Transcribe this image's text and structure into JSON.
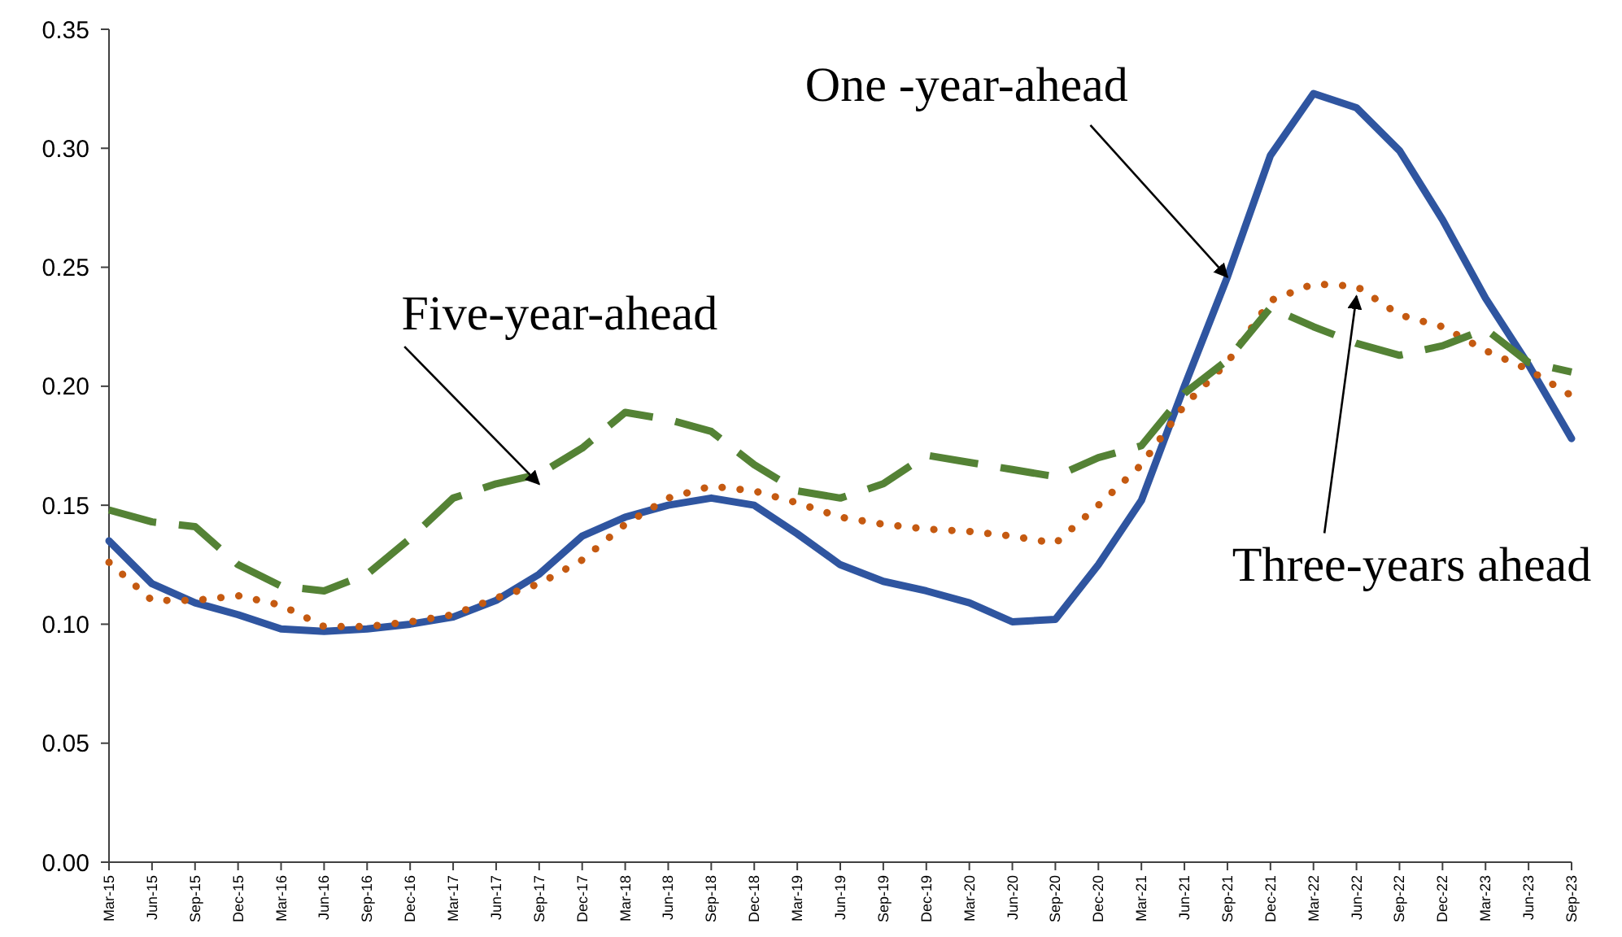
{
  "chart_data": {
    "type": "line",
    "categories": [
      "Mar-15",
      "Jun-15",
      "Sep-15",
      "Dec-15",
      "Mar-16",
      "Jun-16",
      "Sep-16",
      "Dec-16",
      "Mar-17",
      "Jun-17",
      "Sep-17",
      "Dec-17",
      "Mar-18",
      "Jun-18",
      "Sep-18",
      "Dec-18",
      "Mar-19",
      "Jun-19",
      "Sep-19",
      "Dec-19",
      "Mar-20",
      "Jun-20",
      "Sep-20",
      "Dec-20",
      "Mar-21",
      "Jun-21",
      "Sep-21",
      "Dec-21",
      "Mar-22",
      "Jun-22",
      "Sep-22",
      "Dec-22",
      "Mar-23",
      "Jun-23",
      "Sep-23"
    ],
    "series": [
      {
        "color": "#2f55a0",
        "line_style": "solid",
        "values": [
          0.135,
          0.117,
          0.109,
          0.104,
          0.098,
          0.097,
          0.098,
          0.1,
          0.103,
          0.11,
          0.121,
          0.137,
          0.145,
          0.15,
          0.153,
          0.15,
          0.138,
          0.125,
          0.118,
          0.114,
          0.109,
          0.101,
          0.102,
          0.125,
          0.152,
          0.2,
          0.246,
          0.297,
          0.323,
          0.317,
          0.299,
          0.27,
          0.237,
          0.209,
          0.178
        ]
      },
      {
        "color": "#c55a11",
        "line_style": "dotted",
        "values": [
          0.126,
          0.11,
          0.11,
          0.112,
          0.108,
          0.099,
          0.099,
          0.101,
          0.104,
          0.111,
          0.117,
          0.127,
          0.142,
          0.153,
          0.158,
          0.156,
          0.151,
          0.145,
          0.142,
          0.14,
          0.139,
          0.137,
          0.134,
          0.15,
          0.167,
          0.192,
          0.21,
          0.236,
          0.243,
          0.242,
          0.23,
          0.225,
          0.215,
          0.207,
          0.196
        ]
      },
      {
        "color": "#548235",
        "line_style": "dashed",
        "values": [
          0.148,
          0.143,
          0.141,
          0.125,
          0.116,
          0.114,
          0.121,
          0.136,
          0.153,
          0.159,
          0.163,
          0.174,
          0.189,
          0.186,
          0.181,
          0.167,
          0.156,
          0.153,
          0.159,
          0.171,
          0.168,
          0.165,
          0.162,
          0.17,
          0.175,
          0.197,
          0.211,
          0.233,
          0.225,
          0.218,
          0.213,
          0.217,
          0.224,
          0.21,
          0.206
        ]
      }
    ],
    "ylim": [
      0,
      0.35
    ],
    "yticks": [
      {
        "value": 0,
        "label": "0.00"
      },
      {
        "value": 0.05,
        "label": "0.05"
      },
      {
        "value": 0.1,
        "label": "0.10"
      },
      {
        "value": 0.15,
        "label": "0.15"
      },
      {
        "value": 0.2,
        "label": "0.20"
      },
      {
        "value": 0.25,
        "label": "0.25"
      },
      {
        "value": 0.3,
        "label": "0.30"
      },
      {
        "value": 0.35,
        "label": "0.35"
      }
    ],
    "annotations": [
      {
        "text": "One -year-ahead",
        "x": "Sep-21",
        "y": 0.25
      },
      {
        "text": "Three-years ahead",
        "x": "Jun-22",
        "y": 0.242
      },
      {
        "text": "Five-year-ahead",
        "x": "Sep-17",
        "y": 0.163
      }
    ],
    "grid": false,
    "legend": false,
    "marker": "none"
  }
}
